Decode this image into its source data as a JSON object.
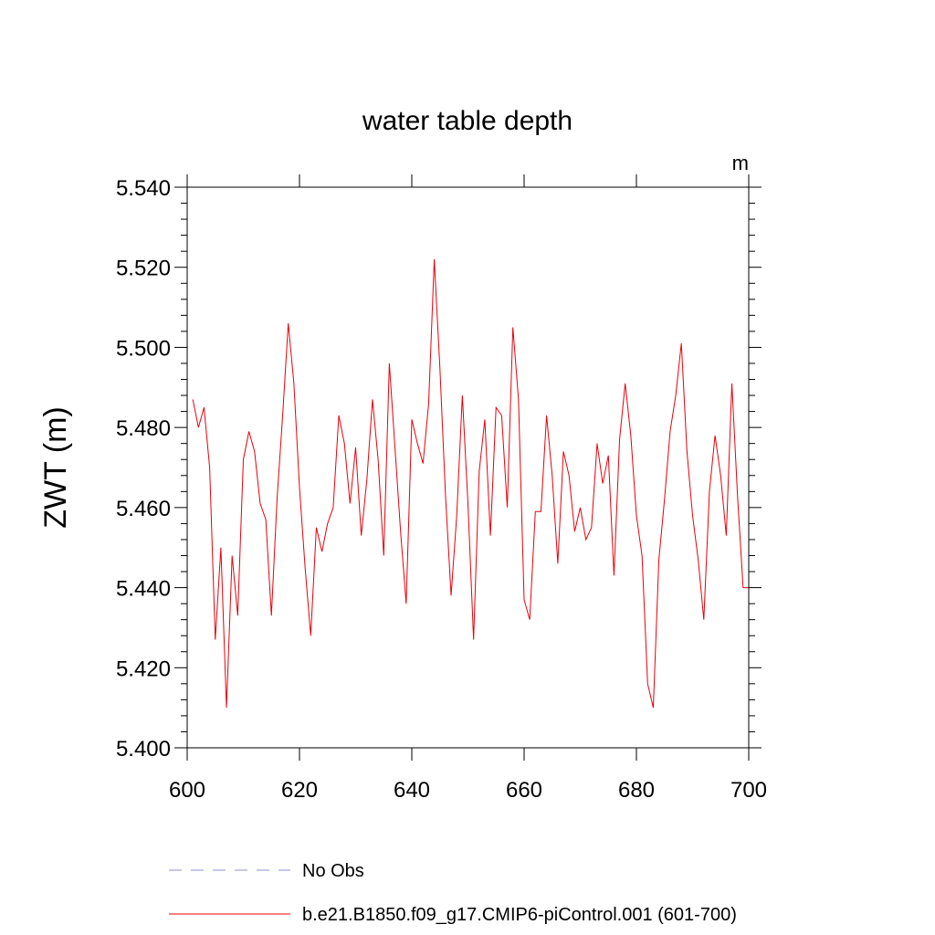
{
  "chart_data": {
    "type": "line",
    "title": "water table depth",
    "units_label": "m",
    "xlabel": "",
    "ylabel": "ZWT  (m)",
    "xlim": [
      600,
      700
    ],
    "ylim": [
      5.4,
      5.54
    ],
    "x_ticks": [
      "600",
      "620",
      "640",
      "660",
      "680",
      "700"
    ],
    "y_ticks": [
      "5.400",
      "5.420",
      "5.440",
      "5.460",
      "5.480",
      "5.500",
      "5.520",
      "5.540"
    ],
    "series": [
      {
        "name": "b.e21.B1850.f09_g17.CMIP6-piControl.001 (601-700)",
        "color": "#e8000b",
        "x": [
          601,
          602,
          603,
          604,
          605,
          606,
          607,
          608,
          609,
          610,
          611,
          612,
          613,
          614,
          615,
          616,
          617,
          618,
          619,
          620,
          621,
          622,
          623,
          624,
          625,
          626,
          627,
          628,
          629,
          630,
          631,
          632,
          633,
          634,
          635,
          636,
          637,
          638,
          639,
          640,
          641,
          642,
          643,
          644,
          645,
          646,
          647,
          648,
          649,
          650,
          651,
          652,
          653,
          654,
          655,
          656,
          657,
          658,
          659,
          660,
          661,
          662,
          663,
          664,
          665,
          666,
          667,
          668,
          669,
          670,
          671,
          672,
          673,
          674,
          675,
          676,
          677,
          678,
          679,
          680,
          681,
          682,
          683,
          684,
          685,
          686,
          687,
          688,
          689,
          690,
          691,
          692,
          693,
          694,
          695,
          696,
          697,
          698,
          699,
          700
        ],
        "values": [
          5.487,
          5.48,
          5.485,
          5.47,
          5.427,
          5.45,
          5.41,
          5.448,
          5.433,
          5.472,
          5.479,
          5.474,
          5.461,
          5.457,
          5.433,
          5.462,
          5.483,
          5.506,
          5.491,
          5.465,
          5.445,
          5.428,
          5.455,
          5.449,
          5.456,
          5.46,
          5.483,
          5.476,
          5.461,
          5.475,
          5.453,
          5.467,
          5.487,
          5.472,
          5.448,
          5.496,
          5.475,
          5.454,
          5.436,
          5.482,
          5.476,
          5.471,
          5.486,
          5.522,
          5.495,
          5.463,
          5.438,
          5.458,
          5.488,
          5.461,
          5.427,
          5.469,
          5.482,
          5.453,
          5.485,
          5.483,
          5.46,
          5.505,
          5.487,
          5.437,
          5.432,
          5.459,
          5.459,
          5.483,
          5.468,
          5.446,
          5.474,
          5.468,
          5.454,
          5.46,
          5.452,
          5.455,
          5.476,
          5.466,
          5.473,
          5.443,
          5.477,
          5.491,
          5.478,
          5.458,
          5.448,
          5.416,
          5.41,
          5.447,
          5.462,
          5.479,
          5.488,
          5.501,
          5.474,
          5.458,
          5.447,
          5.432,
          5.464,
          5.478,
          5.468,
          5.453,
          5.491,
          5.463,
          5.44,
          5.44
        ]
      },
      {
        "name": "No Obs",
        "color": "#8f8fd6",
        "x": [],
        "values": []
      }
    ],
    "legend_position": "bottom"
  }
}
